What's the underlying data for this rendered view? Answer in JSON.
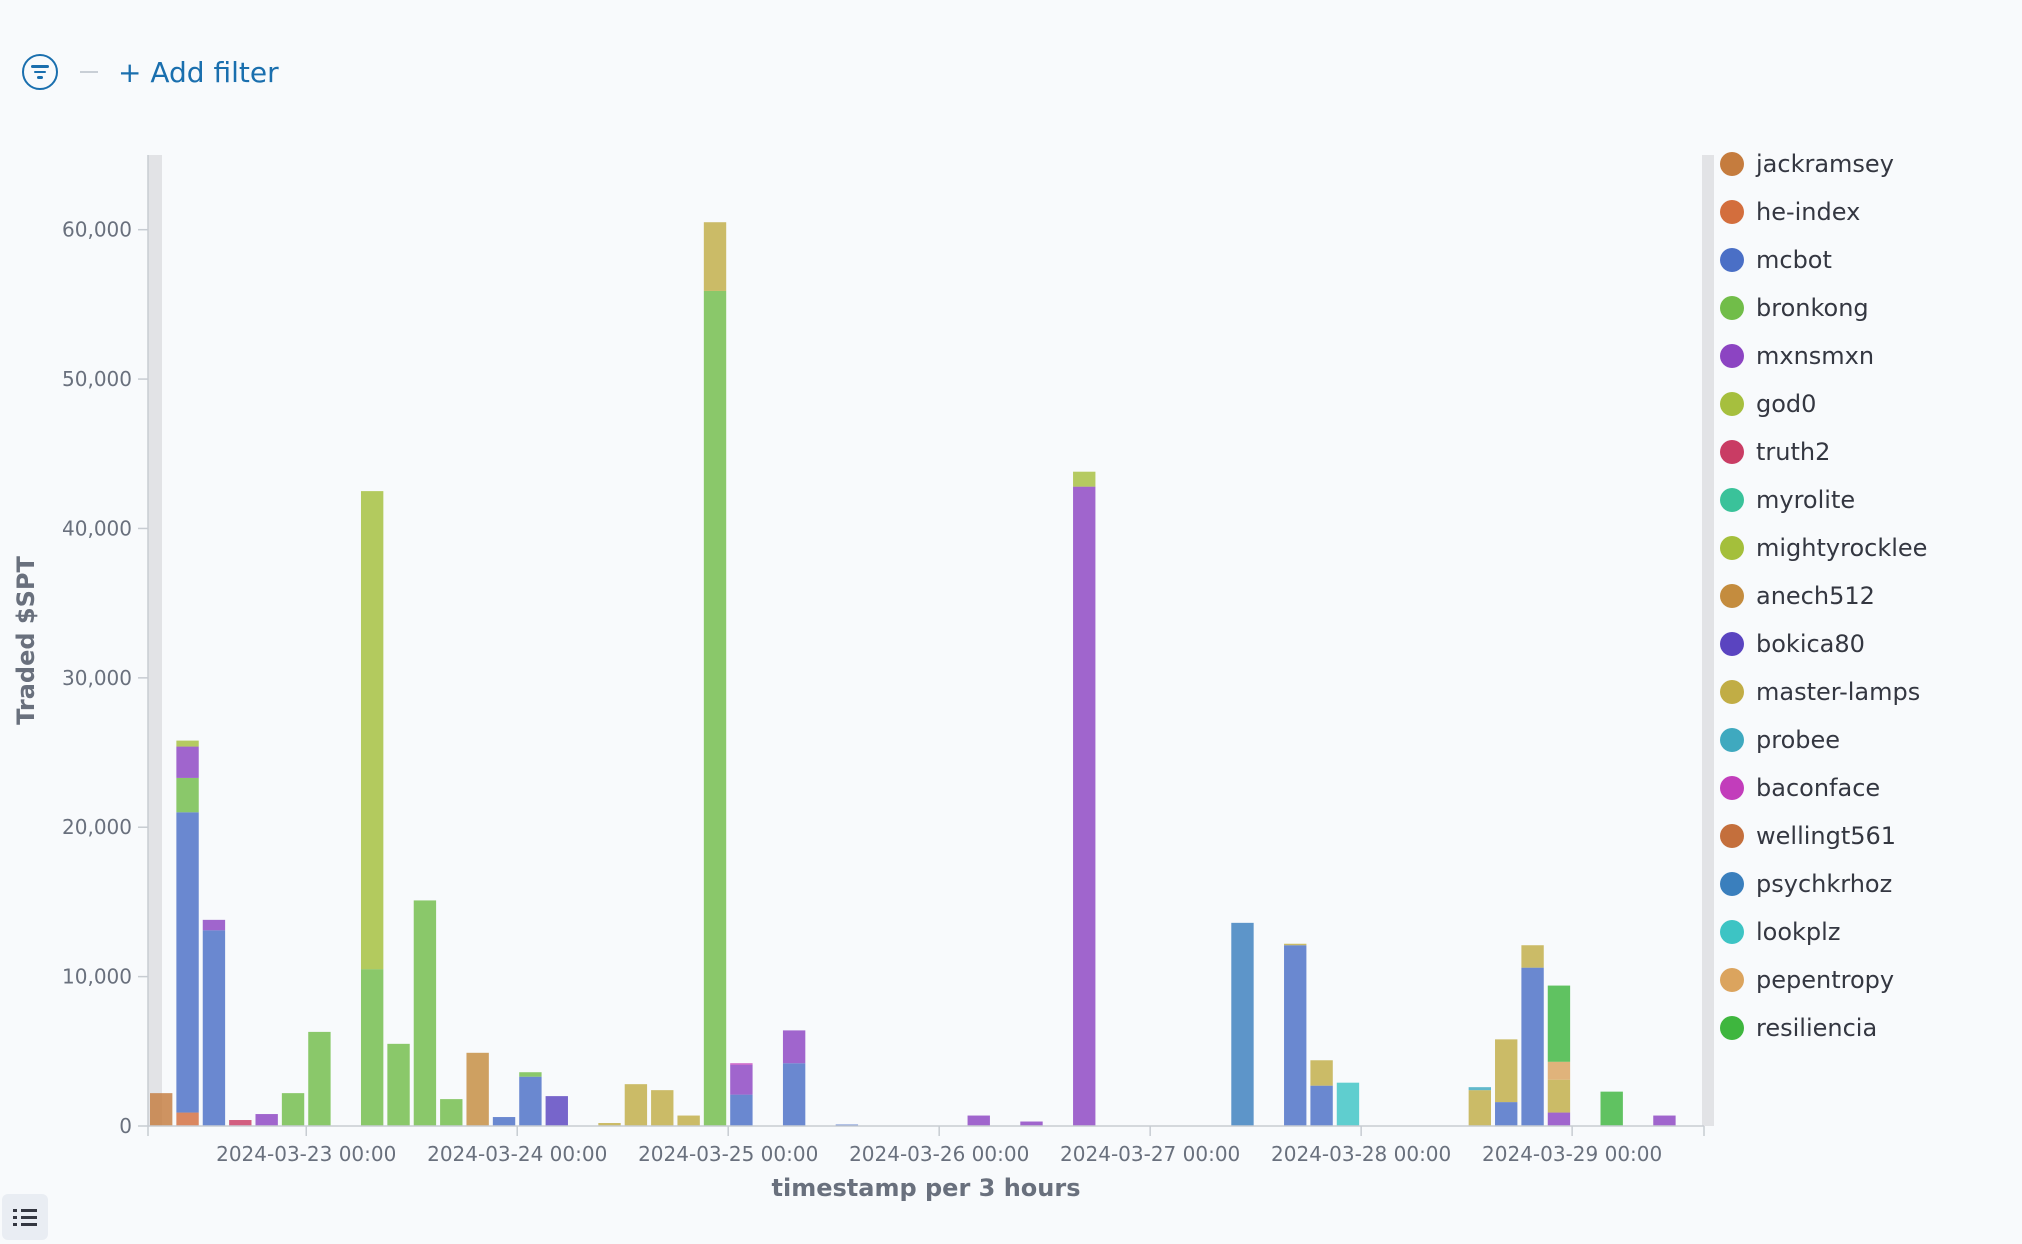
{
  "filter_bar": {
    "add_filter_label": "+ Add filter"
  },
  "chart_data": {
    "type": "bar",
    "stacked": true,
    "xlabel": "timestamp per 3 hours",
    "ylabel": "Traded $SPT",
    "ylim": [
      0,
      65000
    ],
    "yticks": [
      0,
      10000,
      20000,
      30000,
      40000,
      50000,
      60000
    ],
    "ytick_labels": [
      "0",
      "10,000",
      "20,000",
      "30,000",
      "40,000",
      "50,000",
      "60,000"
    ],
    "xlim": [
      "2024-03-22 06:00",
      "2024-03-29 12:00"
    ],
    "xtick_labels": [
      "2024-03-23 00:00",
      "2024-03-24 00:00",
      "2024-03-25 00:00",
      "2024-03-26 00:00",
      "2024-03-27 00:00",
      "2024-03-28 00:00",
      "2024-03-29 00:00"
    ],
    "legend_position": "right",
    "legend": [
      {
        "name": "jackramsey",
        "color": "#c57c3e"
      },
      {
        "name": "he-index",
        "color": "#d36e3d"
      },
      {
        "name": "mcbot",
        "color": "#4a6fc6"
      },
      {
        "name": "bronkong",
        "color": "#71bd49"
      },
      {
        "name": "mxnsmxn",
        "color": "#8c44c2"
      },
      {
        "name": "god0",
        "color": "#a6bf3e"
      },
      {
        "name": "truth2",
        "color": "#c93c64"
      },
      {
        "name": "myrolite",
        "color": "#3ac29a"
      },
      {
        "name": "mightyrocklee",
        "color": "#a4bf3b"
      },
      {
        "name": "anech512",
        "color": "#c48c3e"
      },
      {
        "name": "bokica80",
        "color": "#5a44c0"
      },
      {
        "name": "master-lamps",
        "color": "#c1ad45"
      },
      {
        "name": "probee",
        "color": "#3fa9bf"
      },
      {
        "name": "baconface",
        "color": "#c23dbb"
      },
      {
        "name": "wellingt561",
        "color": "#c46f3c"
      },
      {
        "name": "psychkrhoz",
        "color": "#3a7fbd"
      },
      {
        "name": "lookplz",
        "color": "#3dc4c4"
      },
      {
        "name": "pepentropy",
        "color": "#dba45e"
      },
      {
        "name": "resiliencia",
        "color": "#3eb63e"
      }
    ],
    "bars": [
      {
        "x": "2024-03-22 06:00",
        "stack": [
          {
            "series": "jackramsey",
            "value": 2200
          }
        ]
      },
      {
        "x": "2024-03-22 09:00",
        "stack": [
          {
            "series": "he-index",
            "value": 900
          },
          {
            "series": "mcbot",
            "value": 20100
          },
          {
            "series": "bronkong",
            "value": 2300
          },
          {
            "series": "mxnsmxn",
            "value": 2100
          },
          {
            "series": "god0",
            "value": 400
          }
        ]
      },
      {
        "x": "2024-03-22 12:00",
        "stack": [
          {
            "series": "mcbot",
            "value": 13100
          },
          {
            "series": "mxnsmxn",
            "value": 700
          }
        ]
      },
      {
        "x": "2024-03-22 15:00",
        "stack": [
          {
            "series": "truth2",
            "value": 400
          }
        ]
      },
      {
        "x": "2024-03-22 18:00",
        "stack": [
          {
            "series": "mxnsmxn",
            "value": 800
          }
        ]
      },
      {
        "x": "2024-03-22 21:00",
        "stack": [
          {
            "series": "bronkong",
            "value": 2200
          }
        ]
      },
      {
        "x": "2024-03-23 00:00",
        "stack": [
          {
            "series": "bronkong",
            "value": 6300
          }
        ]
      },
      {
        "x": "2024-03-23 06:00",
        "stack": [
          {
            "series": "bronkong",
            "value": 10500
          },
          {
            "series": "mightyrocklee",
            "value": 32000
          }
        ]
      },
      {
        "x": "2024-03-23 09:00",
        "stack": [
          {
            "series": "bronkong",
            "value": 5500
          }
        ]
      },
      {
        "x": "2024-03-23 12:00",
        "stack": [
          {
            "series": "bronkong",
            "value": 15100
          }
        ]
      },
      {
        "x": "2024-03-23 15:00",
        "stack": [
          {
            "series": "bronkong",
            "value": 1800
          }
        ]
      },
      {
        "x": "2024-03-23 18:00",
        "stack": [
          {
            "series": "anech512",
            "value": 4900
          }
        ]
      },
      {
        "x": "2024-03-23 21:00",
        "stack": [
          {
            "series": "mcbot",
            "value": 600
          }
        ]
      },
      {
        "x": "2024-03-24 00:00",
        "stack": [
          {
            "series": "mcbot",
            "value": 3300
          },
          {
            "series": "bronkong",
            "value": 300
          }
        ]
      },
      {
        "x": "2024-03-24 03:00",
        "stack": [
          {
            "series": "bokica80",
            "value": 2000
          }
        ]
      },
      {
        "x": "2024-03-24 09:00",
        "stack": [
          {
            "series": "master-lamps",
            "value": 200
          }
        ]
      },
      {
        "x": "2024-03-24 12:00",
        "stack": [
          {
            "series": "master-lamps",
            "value": 2800
          }
        ]
      },
      {
        "x": "2024-03-24 15:00",
        "stack": [
          {
            "series": "master-lamps",
            "value": 2400
          }
        ]
      },
      {
        "x": "2024-03-24 18:00",
        "stack": [
          {
            "series": "master-lamps",
            "value": 700
          }
        ]
      },
      {
        "x": "2024-03-24 21:00",
        "stack": [
          {
            "series": "bronkong",
            "value": 55900
          },
          {
            "series": "master-lamps",
            "value": 4600
          }
        ]
      },
      {
        "x": "2024-03-25 00:00",
        "stack": [
          {
            "series": "mcbot",
            "value": 2100
          },
          {
            "series": "mxnsmxn",
            "value": 2000
          },
          {
            "series": "baconface",
            "value": 100
          }
        ]
      },
      {
        "x": "2024-03-25 06:00",
        "stack": [
          {
            "series": "mcbot",
            "value": 4200
          },
          {
            "series": "mxnsmxn",
            "value": 2200
          }
        ]
      },
      {
        "x": "2024-03-25 12:00",
        "stack": [
          {
            "series": "mcbot",
            "value": 100
          }
        ]
      },
      {
        "x": "2024-03-26 03:00",
        "stack": [
          {
            "series": "mxnsmxn",
            "value": 700
          }
        ]
      },
      {
        "x": "2024-03-26 09:00",
        "stack": [
          {
            "series": "mxnsmxn",
            "value": 300
          }
        ]
      },
      {
        "x": "2024-03-26 15:00",
        "stack": [
          {
            "series": "mxnsmxn",
            "value": 42800
          },
          {
            "series": "god0",
            "value": 1000
          }
        ]
      },
      {
        "x": "2024-03-27 09:00",
        "stack": [
          {
            "series": "psychkrhoz",
            "value": 13600
          }
        ]
      },
      {
        "x": "2024-03-27 15:00",
        "stack": [
          {
            "series": "mcbot",
            "value": 12100
          },
          {
            "series": "master-lamps",
            "value": 100
          }
        ]
      },
      {
        "x": "2024-03-27 18:00",
        "stack": [
          {
            "series": "mcbot",
            "value": 2700
          },
          {
            "series": "master-lamps",
            "value": 1700
          }
        ]
      },
      {
        "x": "2024-03-27 21:00",
        "stack": [
          {
            "series": "lookplz",
            "value": 2900
          }
        ]
      },
      {
        "x": "2024-03-28 12:00",
        "stack": [
          {
            "series": "master-lamps",
            "value": 2400
          },
          {
            "series": "probee",
            "value": 200
          }
        ]
      },
      {
        "x": "2024-03-28 15:00",
        "stack": [
          {
            "series": "mcbot",
            "value": 1600
          },
          {
            "series": "master-lamps",
            "value": 4200
          }
        ]
      },
      {
        "x": "2024-03-28 18:00",
        "stack": [
          {
            "series": "mcbot",
            "value": 10600
          },
          {
            "series": "master-lamps",
            "value": 1500
          }
        ]
      },
      {
        "x": "2024-03-28 21:00",
        "stack": [
          {
            "series": "mxnsmxn",
            "value": 900
          },
          {
            "series": "master-lamps",
            "value": 2200
          },
          {
            "series": "pepentropy",
            "value": 1200
          },
          {
            "series": "resiliencia",
            "value": 5100
          }
        ]
      },
      {
        "x": "2024-03-29 03:00",
        "stack": [
          {
            "series": "resiliencia",
            "value": 2300
          }
        ]
      },
      {
        "x": "2024-03-29 09:00",
        "stack": [
          {
            "series": "mxnsmxn",
            "value": 700
          }
        ]
      }
    ]
  }
}
